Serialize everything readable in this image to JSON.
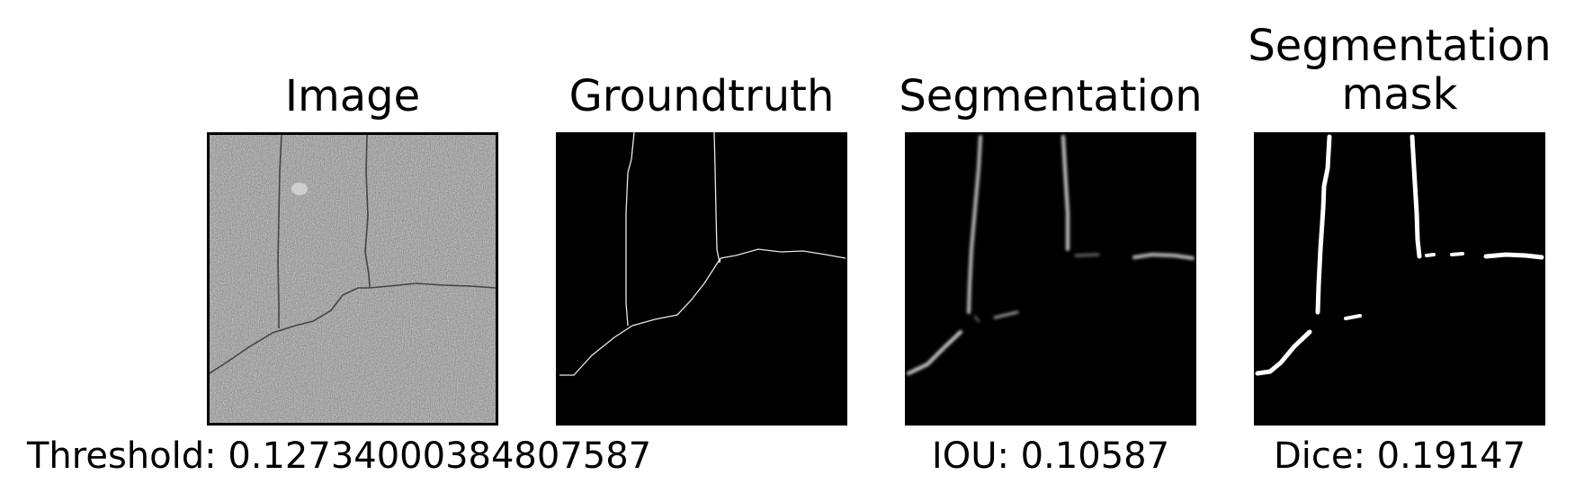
{
  "panels": {
    "image": {
      "title": "Image"
    },
    "groundtruth": {
      "title": "Groundtruth"
    },
    "segmentation": {
      "title": "Segmentation"
    },
    "mask": {
      "title_line1": "Segmentation",
      "title_line2": "mask"
    }
  },
  "metrics": {
    "threshold": "Threshold: 0.12734000384807587",
    "iou": "IOU: 0.10587",
    "dice": "Dice: 0.19147"
  },
  "colors": {
    "background": "#ffffff",
    "panel_bg": "#000000",
    "crack_gray": "#3a3a3a"
  }
}
